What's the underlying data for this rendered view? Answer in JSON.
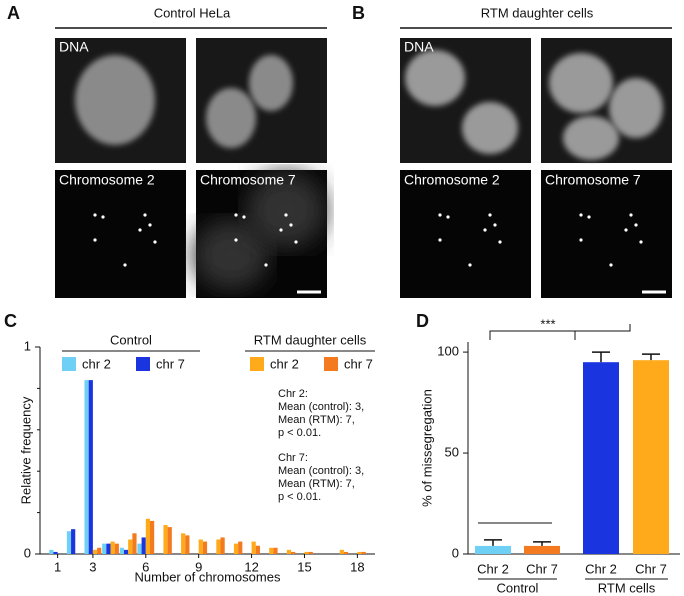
{
  "panels": [
    {
      "letter": "A",
      "title": "Control HeLa",
      "labels": [
        "DNA",
        "Chromosome 2",
        "Chromosome 7"
      ]
    },
    {
      "letter": "B",
      "title": "RTM daughter cells",
      "labels": [
        "DNA",
        "Chromosome 2",
        "Chromosome 7"
      ]
    }
  ],
  "chart_data": [
    {
      "type": "bar",
      "letter": "C",
      "xlabel": "Number of chromosomes",
      "ylabel": "Relative frequency",
      "legend_groups": [
        "Control",
        "RTM daughter cells"
      ],
      "x": [
        1,
        2,
        3,
        4,
        5,
        6,
        7,
        8,
        9,
        10,
        11,
        12,
        13,
        14,
        15,
        16,
        17,
        18
      ],
      "series": [
        {
          "name": "chr 2",
          "color": "#6fd0f5",
          "values": [
            0.02,
            0.11,
            0.84,
            0.05,
            0.03,
            0.05,
            0,
            0,
            0,
            0,
            0,
            0,
            0,
            0,
            0,
            0,
            0,
            0
          ]
        },
        {
          "name": "chr 7",
          "color": "#1a35e0",
          "values": [
            0.01,
            0.12,
            0.84,
            0.05,
            0.02,
            0.08,
            0,
            0,
            0,
            0,
            0,
            0,
            0,
            0,
            0,
            0,
            0,
            0
          ]
        },
        {
          "name": "chr 2",
          "color": "#ffaa1a",
          "values": [
            0,
            0,
            0.02,
            0.06,
            0.07,
            0.17,
            0.14,
            0.1,
            0.07,
            0.07,
            0.05,
            0.06,
            0.03,
            0.02,
            0.01,
            0,
            0.02,
            0.01
          ]
        },
        {
          "name": "chr 7",
          "color": "#f47a1f",
          "values": [
            0,
            0,
            0.03,
            0.05,
            0.1,
            0.16,
            0.13,
            0.09,
            0.06,
            0.08,
            0.06,
            0.04,
            0.03,
            0.01,
            0.01,
            0,
            0.01,
            0.01
          ]
        }
      ],
      "xlim": [
        0,
        19
      ],
      "xticks": [
        1,
        3,
        6,
        9,
        12,
        15,
        18
      ],
      "ylim": [
        0,
        1
      ],
      "yticks": [
        0,
        1
      ],
      "annotations": [
        "Chr 2:",
        "Mean (control): 3,",
        "Mean (RTM): 7,",
        "p < 0.01.",
        "Chr 7:",
        "Mean (control): 3,",
        "Mean (RTM): 7,",
        "p < 0.01."
      ]
    },
    {
      "type": "errorbar",
      "letter": "D",
      "ylabel": "% of missegregation",
      "categories": [
        "Chr 2",
        "Chr 7",
        "Chr 2",
        "Chr 7"
      ],
      "groups": [
        "Control",
        "RTM cells"
      ],
      "values": [
        4,
        4,
        95,
        96
      ],
      "errors": [
        3,
        2,
        5,
        3
      ],
      "colors": [
        "#6fd0f5",
        "#f47a1f",
        "#1a35e0",
        "#ffaa1a"
      ],
      "ylim": [
        0,
        105
      ],
      "yticks": [
        0,
        50,
        100
      ],
      "annotation": "***"
    }
  ]
}
